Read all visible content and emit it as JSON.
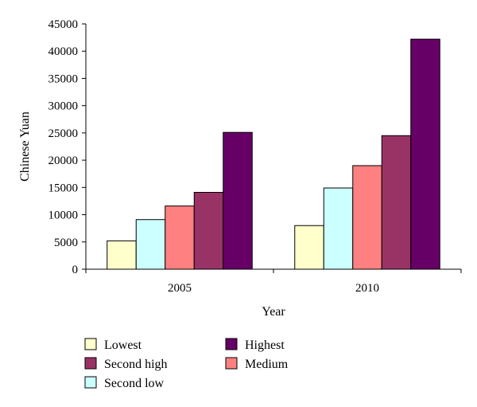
{
  "chart_data": {
    "type": "bar",
    "xlabel": "Year",
    "ylabel": "Chinese Yuan",
    "ylim": [
      0,
      45000
    ],
    "yticks": [
      0,
      5000,
      10000,
      15000,
      20000,
      25000,
      30000,
      35000,
      40000,
      45000
    ],
    "categories": [
      "2005",
      "2010"
    ],
    "grid": false,
    "legend_position": "bottom",
    "series": [
      {
        "name": "Lowest",
        "color": "#ffffcc",
        "values": [
          5200,
          8000
        ]
      },
      {
        "name": "Second low",
        "color": "#ccffff",
        "values": [
          9100,
          14900
        ]
      },
      {
        "name": "Medium",
        "color": "#ff8080",
        "values": [
          11600,
          19000
        ]
      },
      {
        "name": "Second high",
        "color": "#993366",
        "values": [
          14100,
          24500
        ]
      },
      {
        "name": "Highest",
        "color": "#660066",
        "values": [
          25100,
          42200
        ]
      }
    ]
  }
}
